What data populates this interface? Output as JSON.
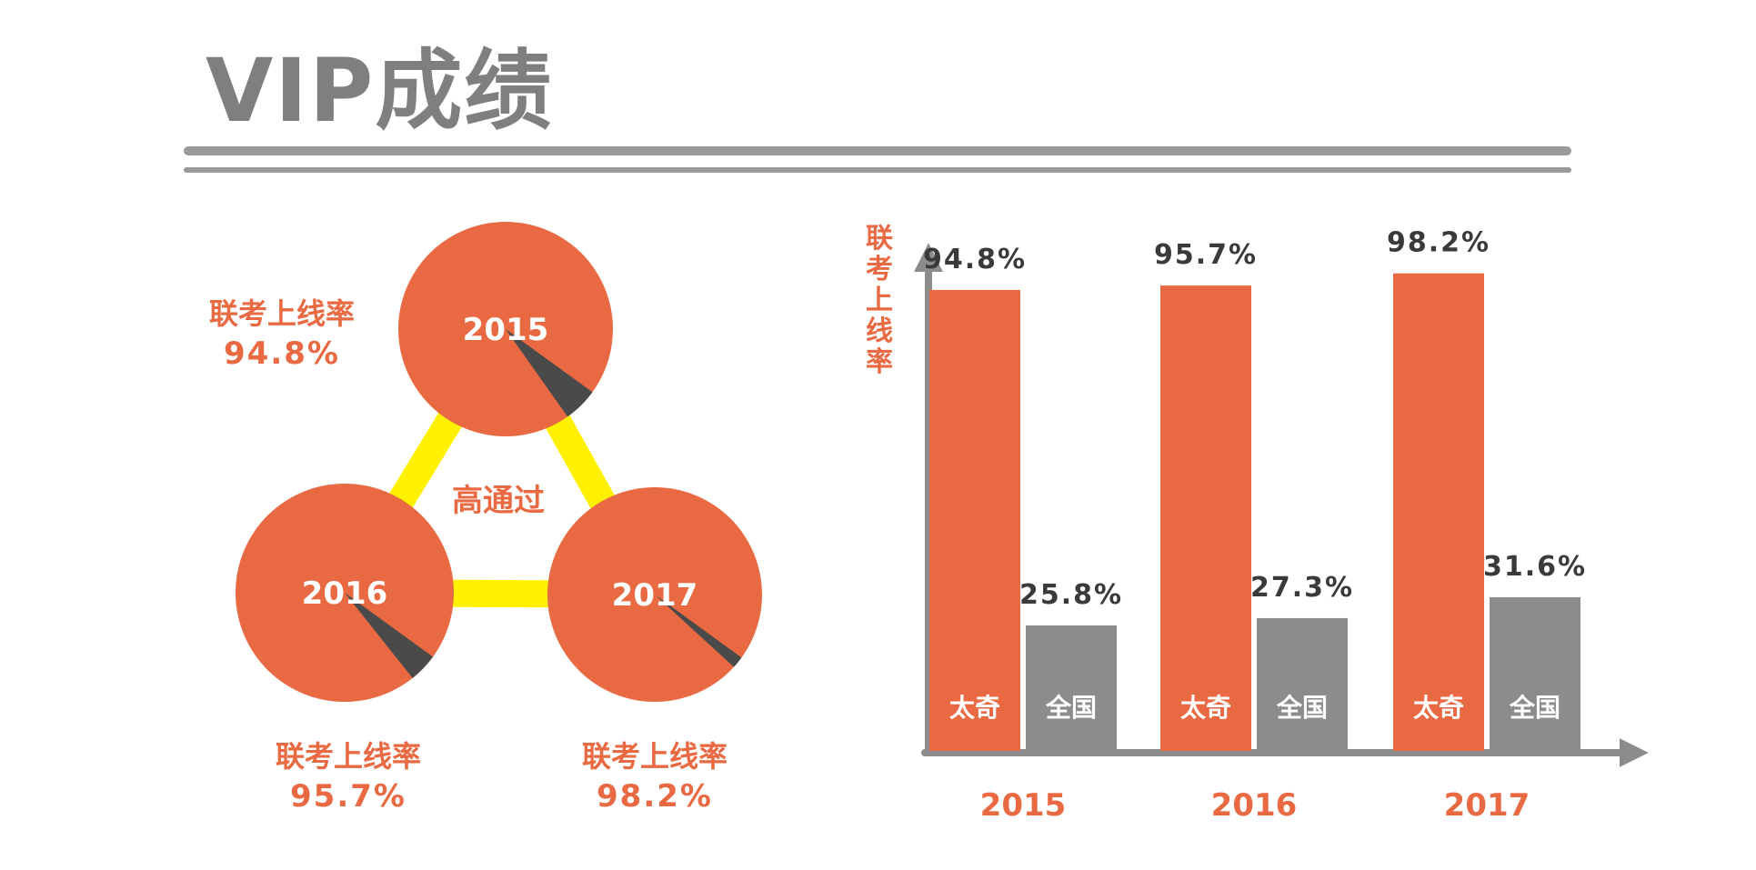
{
  "title": "VIP成绩",
  "colors": {
    "accent": "#E96A42",
    "gray": "#8C8C8C",
    "dark_wedge": "#4A4A4A",
    "connector": "#FFF100",
    "axis": "#8C8C8C",
    "value_text": "#3A3A3A",
    "title_gray": "#7F7F7F",
    "white": "#FFFFFF"
  },
  "triangle": {
    "center_label": "高通过",
    "circles": [
      {
        "year": "2015",
        "caption": "联考上线率",
        "rate_label": "94.8%",
        "rate": 94.8
      },
      {
        "year": "2016",
        "caption": "联考上线率",
        "rate_label": "95.7%",
        "rate": 95.7
      },
      {
        "year": "2017",
        "caption": "联考上线率",
        "rate_label": "98.2%",
        "rate": 98.2
      }
    ]
  },
  "chart_data": {
    "type": "bar",
    "ylabel": "联考上线率",
    "categories": [
      "2015",
      "2016",
      "2017"
    ],
    "series": [
      {
        "name": "太奇",
        "values": [
          94.8,
          95.7,
          98.2
        ],
        "labels": [
          "94.8%",
          "95.7%",
          "98.2%"
        ],
        "color": "#E96A42"
      },
      {
        "name": "全国",
        "values": [
          25.8,
          27.3,
          31.6
        ],
        "labels": [
          "25.8%",
          "27.3%",
          "31.6%"
        ],
        "color": "#8C8C8C"
      }
    ],
    "ylim": [
      0,
      100
    ],
    "grid": false,
    "legend": "none"
  }
}
